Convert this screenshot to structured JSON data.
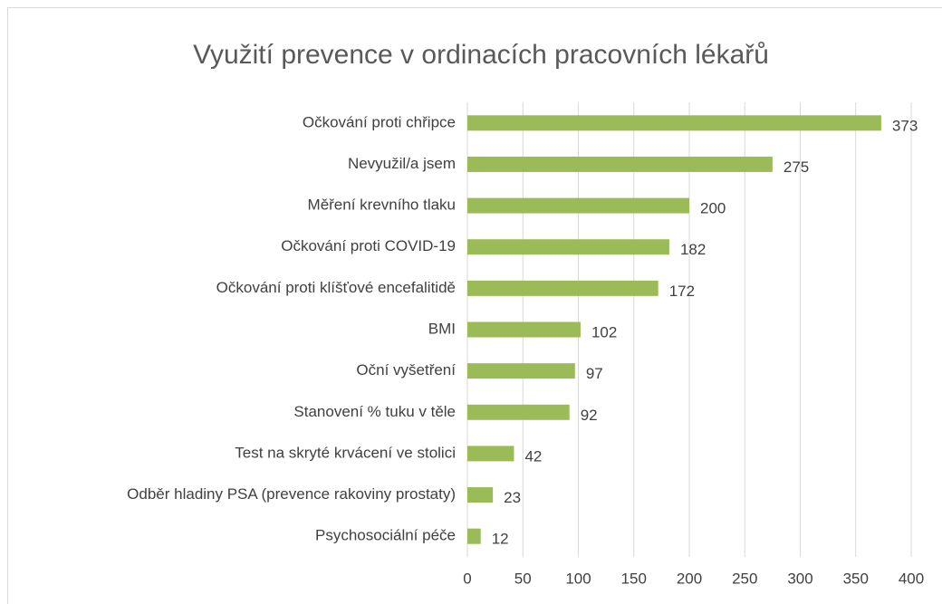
{
  "chart_data": {
    "type": "bar",
    "orientation": "horizontal",
    "title": "Využití prevence v ordinacích pracovních lékařů",
    "categories": [
      "Očkování proti chřipce",
      "Nevyužil/a jsem",
      "Měření krevního tlaku",
      "Očkování proti COVID-19",
      "Očkování proti klíšťové encefalitidě",
      "BMI",
      "Oční vyšetření",
      "Stanovení % tuku v těle",
      "Test na skryté krvácení ve stolici",
      "Odběr hladiny PSA (prevence rakoviny prostaty)",
      "Psychosociální péče"
    ],
    "values": [
      373,
      275,
      200,
      182,
      172,
      102,
      97,
      92,
      42,
      23,
      12
    ],
    "color": "#9bbb59",
    "xlim": [
      0,
      400
    ],
    "xticks": [
      0,
      50,
      100,
      150,
      200,
      250,
      300,
      350,
      400
    ],
    "grid": true
  }
}
